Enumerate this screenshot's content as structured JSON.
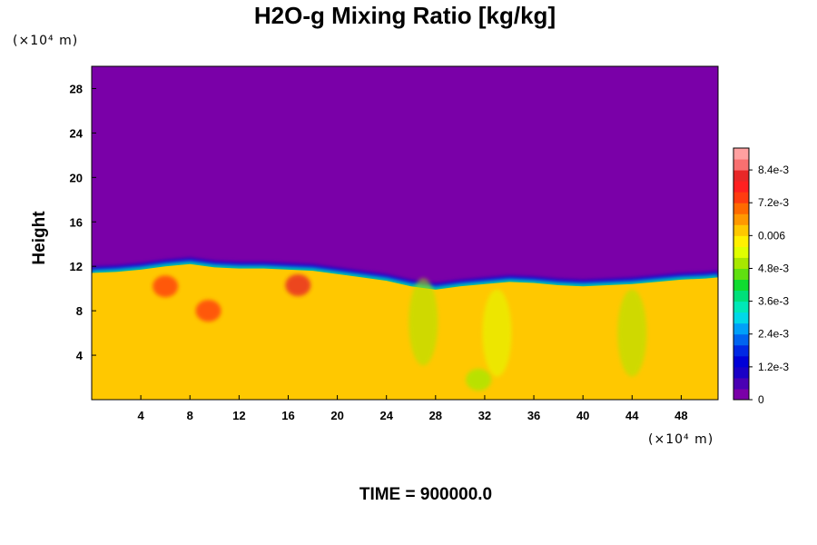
{
  "chart_data": {
    "type": "heatmap",
    "title": "H2O-g Mixing Ratio [kg/kg]",
    "ylabel": "Height",
    "x_unit_label": "(×10⁴ m)",
    "y_unit_label": "(×10⁴ m)",
    "footer": "TIME = 900000.0",
    "xlim": [
      0,
      51
    ],
    "ylim": [
      0,
      30
    ],
    "x_ticks": [
      4,
      8,
      12,
      16,
      20,
      24,
      28,
      32,
      36,
      40,
      44,
      48
    ],
    "y_ticks": [
      4,
      8,
      12,
      16,
      20,
      24,
      28
    ],
    "colorbar": {
      "range": [
        0,
        0.0092
      ],
      "tick_values": [
        0,
        0.0012,
        0.0024,
        0.0036,
        0.0048,
        0.006,
        0.0072,
        0.0084
      ],
      "tick_labels": [
        "0",
        "1.2e-3",
        "2.4e-3",
        "3.6e-3",
        "4.8e-3",
        "0.006",
        "7.2e-3",
        "8.4e-3"
      ],
      "colors": [
        "#7a00a8",
        "#4a00b4",
        "#1a00c6",
        "#0000d8",
        "#0028e4",
        "#0064f0",
        "#00a0f8",
        "#00d8e8",
        "#00e8b8",
        "#00e07a",
        "#10dc30",
        "#60e010",
        "#a8e800",
        "#e0ff00",
        "#fff000",
        "#ffc800",
        "#ff9800",
        "#ff6a00",
        "#ff3c10",
        "#ff2020",
        "#e82828",
        "#f87070",
        "#ffa0a0"
      ]
    },
    "field": {
      "upper_value": 0,
      "lower_value": 0.0062,
      "boundary_height_profile": {
        "x": [
          0,
          2,
          4,
          6,
          8,
          10,
          12,
          14,
          16,
          18,
          20,
          22,
          24,
          26,
          28,
          30,
          32,
          34,
          36,
          38,
          40,
          42,
          44,
          46,
          48,
          50,
          51
        ],
        "y": [
          11.4,
          11.5,
          11.7,
          12.0,
          12.2,
          11.9,
          11.8,
          11.8,
          11.7,
          11.6,
          11.3,
          11.0,
          10.7,
          10.2,
          9.9,
          10.2,
          10.4,
          10.6,
          10.5,
          10.3,
          10.2,
          10.3,
          10.4,
          10.6,
          10.8,
          10.9,
          11.0
        ]
      },
      "moist_patches": [
        {
          "x": 9.5,
          "y": 8.0,
          "value": 0.0072
        },
        {
          "x": 6.0,
          "y": 10.2,
          "value": 0.0074
        },
        {
          "x": 16.8,
          "y": 10.3,
          "value": 0.0082
        },
        {
          "x": 31.5,
          "y": 1.8,
          "value": 0.005
        }
      ],
      "dry_plumes": [
        {
          "x": 27.0,
          "y": 7.0,
          "value": 0.0048
        },
        {
          "x": 44.0,
          "y": 6.0,
          "value": 0.0052
        },
        {
          "x": 33.0,
          "y": 6.0,
          "value": 0.0054
        }
      ]
    }
  }
}
